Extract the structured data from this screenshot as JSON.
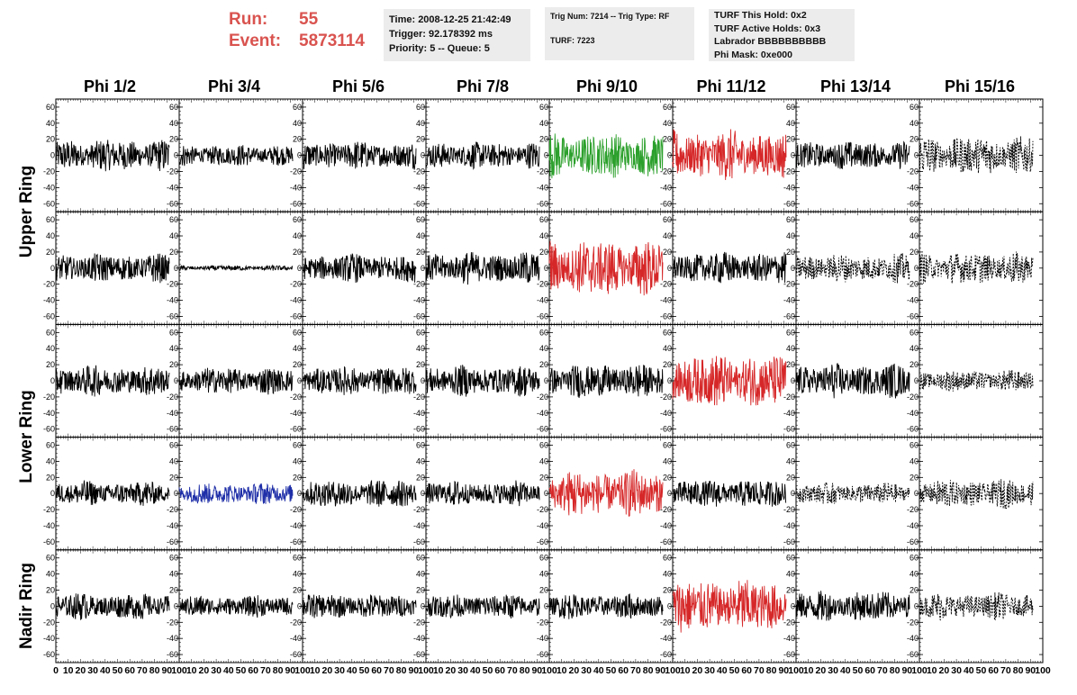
{
  "header": {
    "run_label": "Run:",
    "run_value": "55",
    "event_label": "Event:",
    "event_value": "5873114",
    "accent_color": "#d9534f"
  },
  "info": {
    "time": "Time: 2008-12-25 21:42:49",
    "trigger": "Trigger: 92.178392 ms",
    "priority": "Priority: 5 -- Queue: 5",
    "trig_num": "Trig Num: 7214 -- Trig Type: RF",
    "turf": "TURF: 7223",
    "turf_this_hold": "TURF This Hold: 0x2",
    "turf_active_holds": "TURF Active Holds: 0x3",
    "labrador": "Labrador BBBBBBBBBB",
    "phi_mask": "Phi Mask: 0xe000"
  },
  "chart_data": {
    "type": "line",
    "columns": [
      "Phi 1/2",
      "Phi 3/4",
      "Phi 5/6",
      "Phi 7/8",
      "Phi 9/10",
      "Phi 11/12",
      "Phi 13/14",
      "Phi 15/16"
    ],
    "rings": [
      "Upper Ring",
      "Lower Ring",
      "Nadir Ring"
    ],
    "rows": 5,
    "ylim": [
      -70,
      70
    ],
    "yticks": [
      "60",
      "40",
      "20",
      "0",
      "-20",
      "-40",
      "-60"
    ],
    "ytick_values": [
      60,
      40,
      20,
      0,
      -20,
      -40,
      -60
    ],
    "xlim": [
      0,
      100
    ],
    "xticks": [
      "0",
      "10",
      "20",
      "30",
      "40",
      "50",
      "60",
      "70",
      "80",
      "90",
      "100"
    ],
    "xtick_values": [
      0,
      10,
      20,
      30,
      40,
      50,
      60,
      70,
      80,
      90,
      100
    ],
    "colors": {
      "default": "#000000",
      "red": "#d62728",
      "green": "#2ca02c",
      "blue": "#1f2fa8"
    },
    "panels": [
      [
        "black:18",
        "black:12",
        "black:16",
        "black:15",
        "green:25",
        "red:28",
        "black:16",
        "dashed:22"
      ],
      [
        "black:16",
        "black:3",
        "black:16",
        "black:18",
        "red:32",
        "black:18",
        "dashed:16",
        "dashed:18"
      ],
      [
        "black:17",
        "black:15",
        "black:16",
        "black:17",
        "black:19",
        "red:30",
        "black:19",
        "dashed:12"
      ],
      [
        "black:14",
        "blue:12",
        "black:16",
        "black:14",
        "red:26",
        "black:16",
        "dashed:12",
        "dashed:16"
      ],
      [
        "black:15",
        "black:12",
        "black:14",
        "black:14",
        "black:14",
        "red:30",
        "black:17",
        "dashed:15"
      ]
    ]
  }
}
